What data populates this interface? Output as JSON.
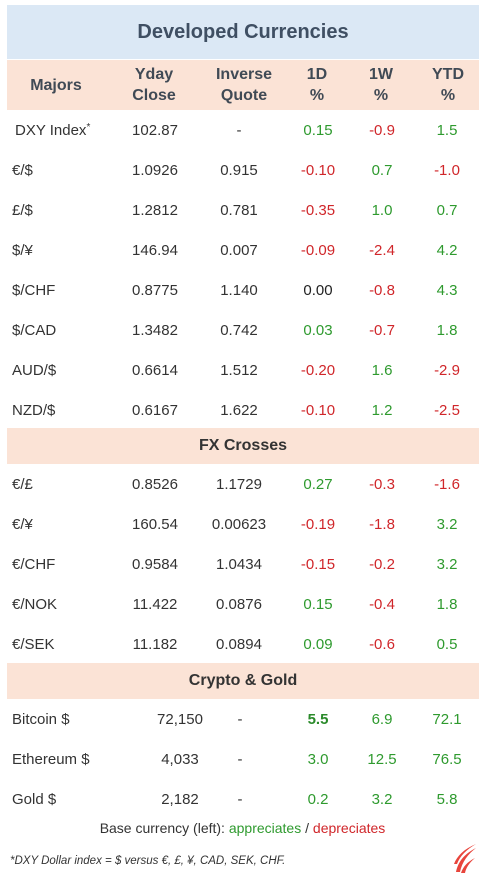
{
  "title": "Developed Currencies",
  "headers": {
    "name": "Majors",
    "close": [
      "Yday",
      "Close"
    ],
    "inverse": [
      "Inverse",
      "Quote"
    ],
    "d1": [
      "1D",
      "%"
    ],
    "w1": [
      "1W",
      "%"
    ],
    "ytd": [
      "YTD",
      "%"
    ]
  },
  "majors": [
    {
      "name": "DXY Index",
      "sup": "*",
      "close": "102.87",
      "inverse": "-",
      "d1": "0.15",
      "w1": "-0.9",
      "ytd": "1.5"
    },
    {
      "name": "€/$",
      "close": "1.0926",
      "inverse": "0.915",
      "d1": "-0.10",
      "w1": "0.7",
      "ytd": "-1.0"
    },
    {
      "name": "£/$",
      "close": "1.2812",
      "inverse": "0.781",
      "d1": "-0.35",
      "w1": "1.0",
      "ytd": "0.7"
    },
    {
      "name": "$/¥",
      "close": "146.94",
      "inverse": "0.007",
      "d1": "-0.09",
      "w1": "-2.4",
      "ytd": "4.2"
    },
    {
      "name": "$/CHF",
      "close": "0.8775",
      "inverse": "1.140",
      "d1": "0.00",
      "w1": "-0.8",
      "ytd": "4.3"
    },
    {
      "name": "$/CAD",
      "close": "1.3482",
      "inverse": "0.742",
      "d1": "0.03",
      "w1": "-0.7",
      "ytd": "1.8"
    },
    {
      "name": "AUD/$",
      "close": "0.6614",
      "inverse": "1.512",
      "d1": "-0.20",
      "w1": "1.6",
      "ytd": "-2.9"
    },
    {
      "name": "NZD/$",
      "close": "0.6167",
      "inverse": "1.622",
      "d1": "-0.10",
      "w1": "1.2",
      "ytd": "-2.5"
    }
  ],
  "crosses_title": "FX Crosses",
  "crosses": [
    {
      "name": "€/£",
      "close": "0.8526",
      "inverse": "1.1729",
      "d1": "0.27",
      "w1": "-0.3",
      "ytd": "-1.6"
    },
    {
      "name": "€/¥",
      "close": "160.54",
      "inverse": "0.00623",
      "d1": "-0.19",
      "w1": "-1.8",
      "ytd": "3.2"
    },
    {
      "name": "€/CHF",
      "close": "0.9584",
      "inverse": "1.0434",
      "d1": "-0.15",
      "w1": "-0.2",
      "ytd": "3.2"
    },
    {
      "name": "€/NOK",
      "close": "11.422",
      "inverse": "0.0876",
      "d1": "0.15",
      "w1": "-0.4",
      "ytd": "1.8"
    },
    {
      "name": "€/SEK",
      "close": "11.182",
      "inverse": "0.0894",
      "d1": "0.09",
      "w1": "-0.6",
      "ytd": "0.5"
    }
  ],
  "crypto_title": "Crypto  &  Gold",
  "crypto": [
    {
      "name": "Bitcoin $",
      "close": "72,150",
      "inverse": "-",
      "d1": "5.5",
      "w1": "6.9",
      "ytd": "72.1"
    },
    {
      "name": "Ethereum $",
      "close": "4,033",
      "inverse": "-",
      "d1": "3.0",
      "w1": "12.5",
      "ytd": "76.5"
    },
    {
      "name": "Gold $",
      "close": "2,182",
      "inverse": "-",
      "d1": "0.2",
      "w1": "3.2",
      "ytd": "5.8"
    }
  ],
  "legend": {
    "prefix": "Base currency (left):",
    "appreciates": "appreciates",
    "separator": "/",
    "depreciates": "depreciates"
  },
  "footnote": "*DXY Dollar index = $ versus €, £, ¥, CAD, SEK, CHF.",
  "colors": {
    "positive": "#2e9a2e",
    "negative": "#d0262a",
    "title_bg": "#dbe8f5",
    "band_bg": "#fbe3d6",
    "logo": "#e8453c"
  },
  "logo_icon": "brand-swoosh-icon"
}
